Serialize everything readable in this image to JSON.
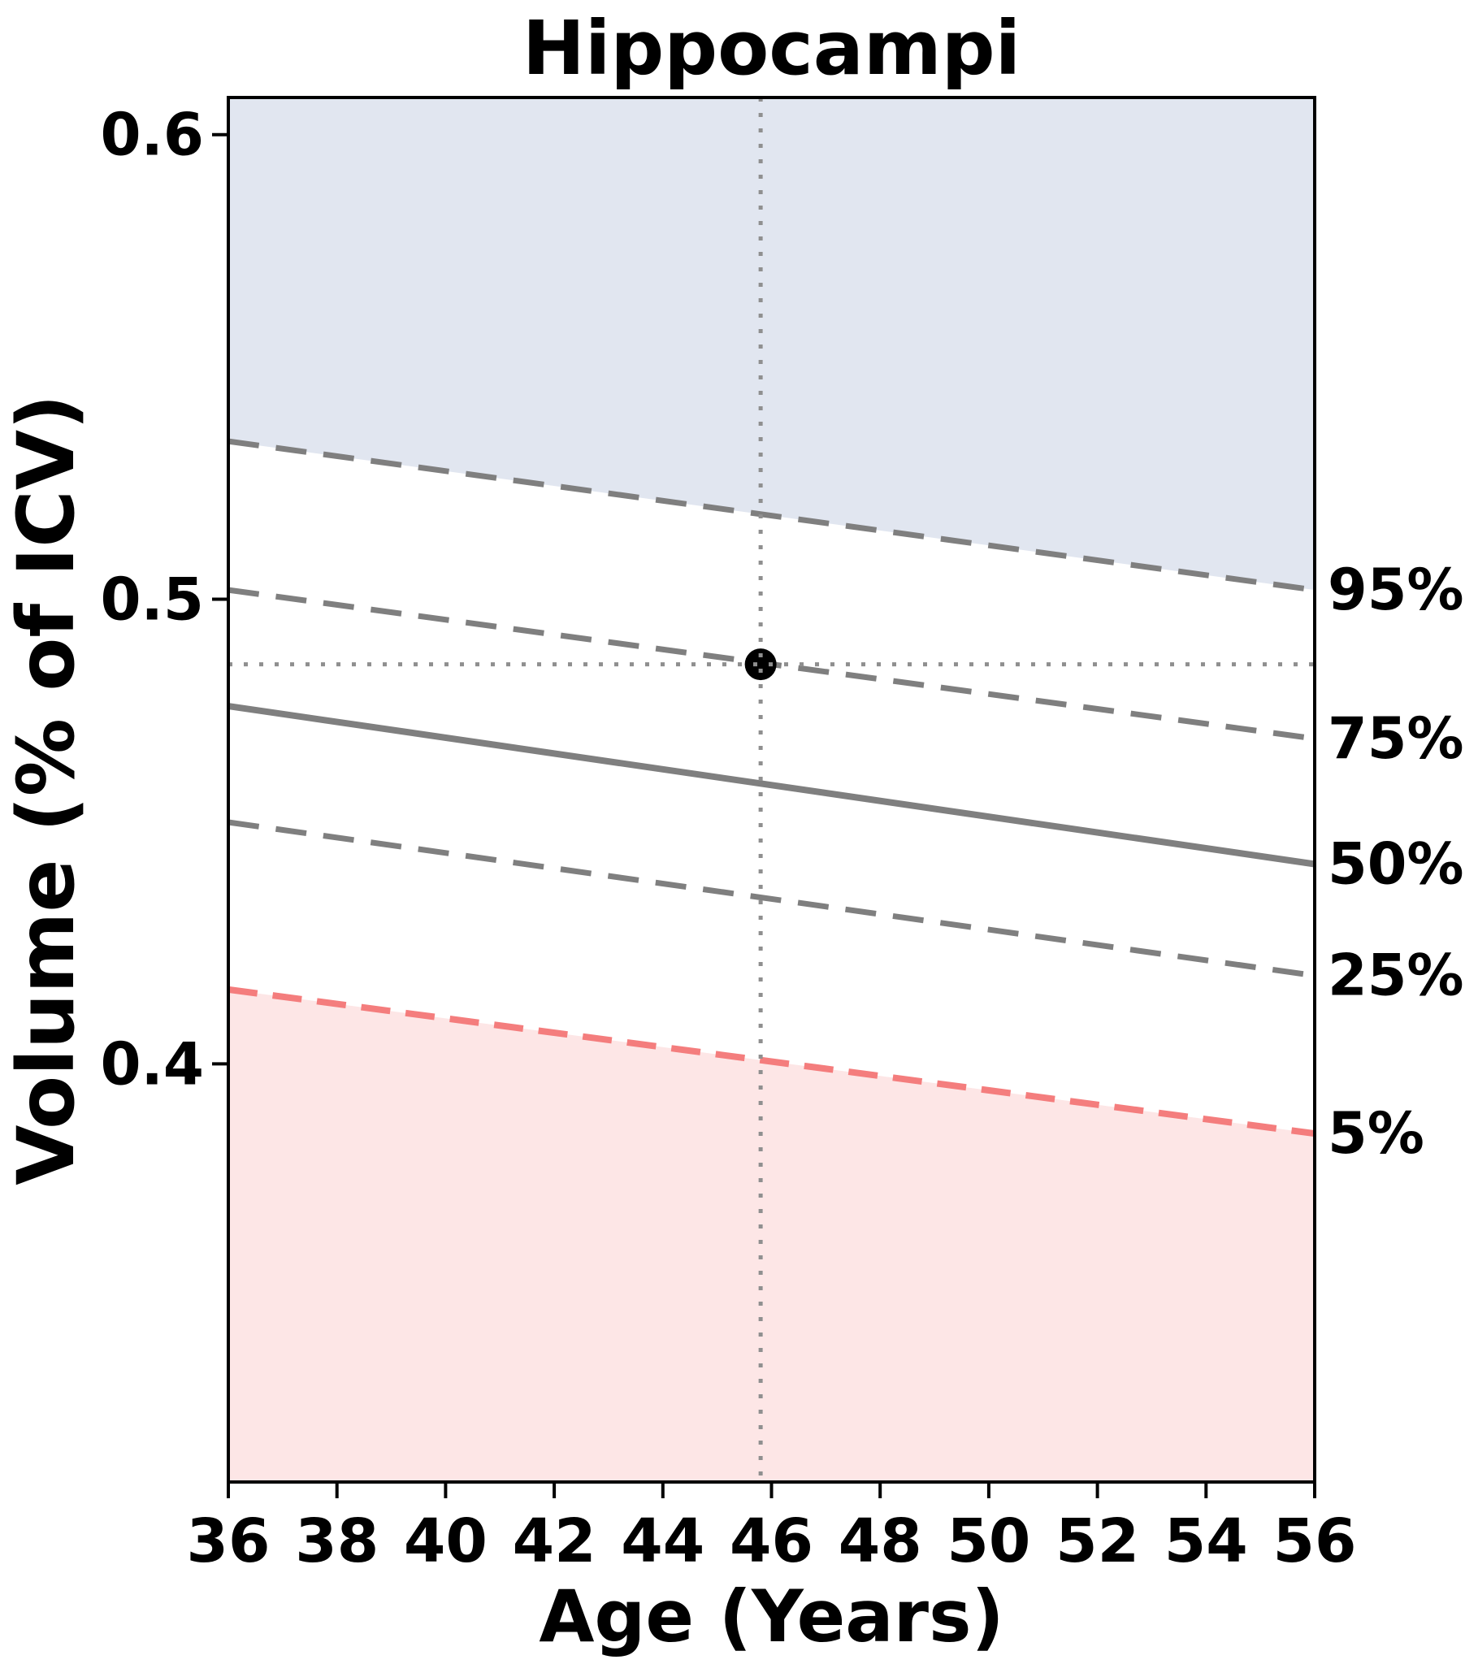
{
  "page": {
    "background": "#ffffff",
    "text_color": "#000000"
  },
  "chart_data": {
    "type": "line",
    "title": "Hippocampi",
    "xlabel": "Age (Years)",
    "ylabel": "Volume (% of ICV)",
    "xlim": [
      36,
      56
    ],
    "ylim": [
      0.31,
      0.608
    ],
    "x_ticks": {
      "values": [
        36,
        38,
        40,
        42,
        44,
        46,
        48,
        50,
        52,
        54,
        56
      ],
      "labels": [
        "36",
        "38",
        "40",
        "42",
        "44",
        "46",
        "48",
        "50",
        "52",
        "54",
        "56"
      ]
    },
    "y_ticks": {
      "values": [
        0.4,
        0.5,
        0.6
      ],
      "labels": [
        "0.4",
        "0.5",
        "0.6"
      ]
    },
    "grid": false,
    "legend_position": "labels-at-right-edge",
    "percentile_series": [
      {
        "name": "95%",
        "x": [
          36,
          56
        ],
        "values": [
          0.534,
          0.502
        ],
        "line": "dashed",
        "color": "#7f7f7f",
        "width": 7
      },
      {
        "name": "75%",
        "x": [
          36,
          56
        ],
        "values": [
          0.502,
          0.47
        ],
        "line": "dashed",
        "color": "#7f7f7f",
        "width": 7
      },
      {
        "name": "50%",
        "x": [
          36,
          56
        ],
        "values": [
          0.477,
          0.443
        ],
        "line": "solid",
        "color": "#7f7f7f",
        "width": 8
      },
      {
        "name": "25%",
        "x": [
          36,
          56
        ],
        "values": [
          0.452,
          0.419
        ],
        "line": "dashed",
        "color": "#7f7f7f",
        "width": 7
      },
      {
        "name": "5%",
        "x": [
          36,
          56
        ],
        "values": [
          0.416,
          0.385
        ],
        "line": "dashed",
        "color": "#f47d7d",
        "width": 8
      }
    ],
    "shaded_bands": [
      {
        "name": "above-95th-percentile",
        "boundary": "95%",
        "to": "top",
        "fill": "#e1e6f0"
      },
      {
        "name": "below-5th-percentile",
        "boundary": "5%",
        "to": "bottom",
        "fill": "#fde6e6"
      }
    ],
    "patient_point": {
      "age": 45.8,
      "volume_pct_icv": 0.486,
      "marker": "circle",
      "marker_color": "#000000",
      "crosshair_color": "#8f8f8f"
    },
    "axis_color": "#000000"
  }
}
